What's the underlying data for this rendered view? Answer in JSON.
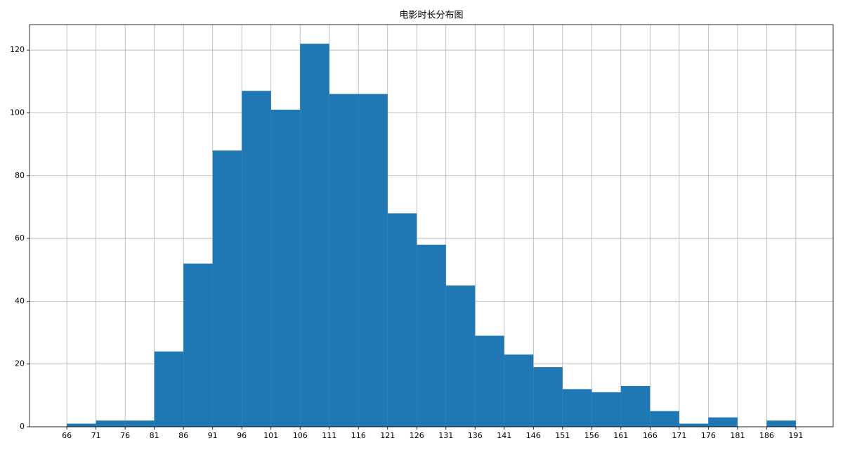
{
  "chart_data": {
    "type": "histogram",
    "title": "电影时长分布图",
    "bins": [
      66,
      71,
      76,
      81,
      86,
      91,
      96,
      101,
      106,
      111,
      116,
      121,
      126,
      131,
      136,
      141,
      146,
      151,
      156,
      161,
      166,
      171,
      176,
      181,
      186,
      191
    ],
    "values": [
      1,
      2,
      2,
      24,
      52,
      88,
      107,
      101,
      122,
      106,
      106,
      68,
      58,
      45,
      29,
      23,
      19,
      12,
      11,
      13,
      5,
      1,
      3,
      0,
      2
    ],
    "color": "#1f77b4",
    "xlim": [
      59.6,
      197.4
    ],
    "xticks": [
      66,
      71,
      76,
      81,
      86,
      91,
      96,
      101,
      106,
      111,
      116,
      121,
      126,
      131,
      136,
      141,
      146,
      151,
      156,
      161,
      166,
      171,
      176,
      181,
      186,
      191
    ],
    "ylim": [
      0,
      128.1
    ],
    "yticks": [
      0,
      20,
      40,
      60,
      80,
      100,
      120
    ],
    "grid": true
  }
}
